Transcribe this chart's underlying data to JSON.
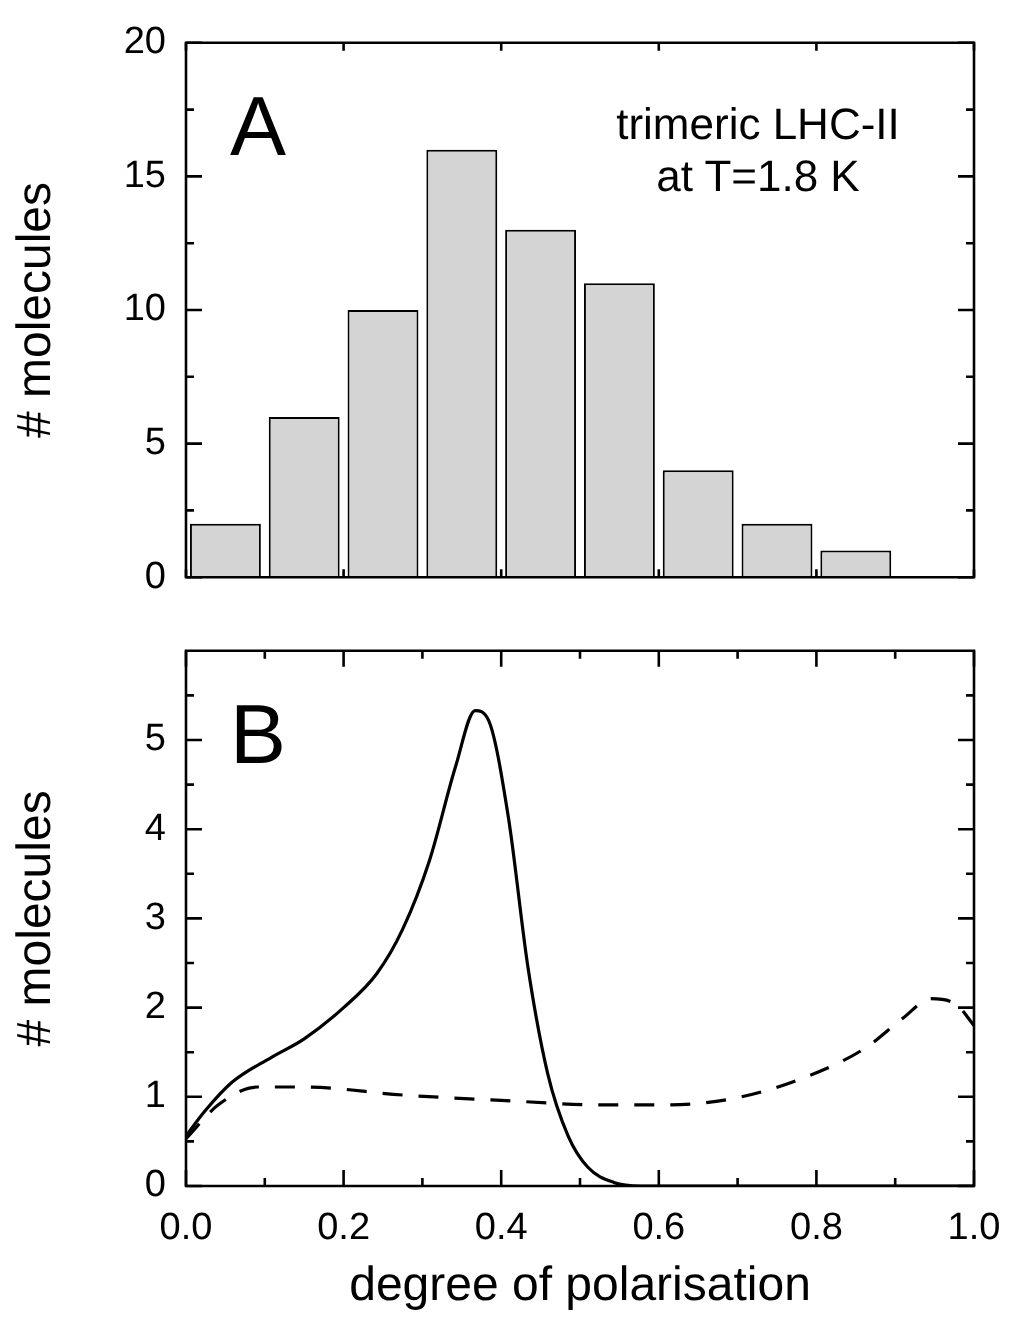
{
  "chart_data": [
    {
      "type": "histogram",
      "bins": [
        0,
        0.1,
        0.2,
        0.3,
        0.4,
        0.5,
        0.6,
        0.7,
        0.8,
        0.9
      ],
      "values": [
        2,
        6,
        10,
        16,
        13,
        11,
        4,
        2,
        1
      ],
      "color": "#d4d4d4",
      "xlim": [
        0,
        1
      ],
      "xticks": [
        {
          "value": 0,
          "label": null
        },
        {
          "value": 0.2,
          "label": null
        },
        {
          "value": 0.4,
          "label": null
        },
        {
          "value": 0.6,
          "label": null
        },
        {
          "value": 0.8,
          "label": null
        },
        {
          "value": 1,
          "label": null
        }
      ],
      "ylim": [
        0,
        20
      ],
      "yticks": [
        0,
        {
          "value": 2.5,
          "label": null
        },
        5,
        {
          "value": 7.5,
          "label": null
        },
        10,
        {
          "value": 12.5,
          "label": null
        },
        15,
        {
          "value": 17.5,
          "label": null
        },
        20
      ],
      "ylabel": "# molecules",
      "tick_labels": "y",
      "grid": false,
      "annotations": [
        "A",
        "trimeric LHC-II\nat T=1.8 K"
      ]
    },
    {
      "type": "line",
      "marker": "none",
      "grid": false,
      "xlabel": "degree of polarisation",
      "ylabel": "# molecules",
      "xlim": [
        0,
        1
      ],
      "xticks": [
        {
          "value": 0,
          "label": "0.0"
        },
        {
          "value": 0.1,
          "label": null
        },
        {
          "value": 0.2,
          "label": "0.2"
        },
        {
          "value": 0.3,
          "label": null
        },
        {
          "value": 0.4,
          "label": "0.4"
        },
        {
          "value": 0.5,
          "label": null
        },
        {
          "value": 0.6,
          "label": "0.6"
        },
        {
          "value": 0.7,
          "label": null
        },
        {
          "value": 0.8,
          "label": "0.8"
        },
        {
          "value": 0.9,
          "label": null
        },
        {
          "value": 1,
          "label": "1.0"
        }
      ],
      "ylim": [
        0,
        6
      ],
      "yticks": [
        0,
        {
          "value": 0.5,
          "label": null
        },
        1,
        {
          "value": 1.5,
          "label": null
        },
        2,
        {
          "value": 2.5,
          "label": null
        },
        3,
        {
          "value": 3.5,
          "label": null
        },
        4,
        {
          "value": 4.5,
          "label": null
        },
        5,
        {
          "value": 5.5,
          "label": null
        }
      ],
      "series": [
        {
          "color": "#000000",
          "line_style": "solid",
          "x": [
            0,
            0.024,
            0.058,
            0.108,
            0.15,
            0.2,
            0.242,
            0.275,
            0.309,
            0.342,
            0.367,
            0.384,
            0.409,
            0.434,
            0.459,
            0.485,
            0.51,
            0.543,
            0.577,
            1.0
          ],
          "values": [
            0.56,
            0.84,
            1.16,
            1.44,
            1.65,
            2.0,
            2.38,
            2.88,
            3.65,
            4.7,
            5.33,
            5.22,
            4.14,
            2.45,
            1.26,
            0.56,
            0.21,
            0.04,
            0,
            0
          ]
        },
        {
          "color": "#000000",
          "line_style": "dashed",
          "x": [
            0,
            0.041,
            0.091,
            0.15,
            0.275,
            0.4,
            0.526,
            0.61,
            0.694,
            0.777,
            0.861,
            0.911,
            0.945,
            0.978,
            1.0
          ],
          "values": [
            0.53,
            0.91,
            1.11,
            1.11,
            1.02,
            0.96,
            0.91,
            0.91,
            0.98,
            1.19,
            1.54,
            1.89,
            2.1,
            2.03,
            1.8
          ]
        }
      ],
      "annotations": [
        "B"
      ]
    }
  ]
}
